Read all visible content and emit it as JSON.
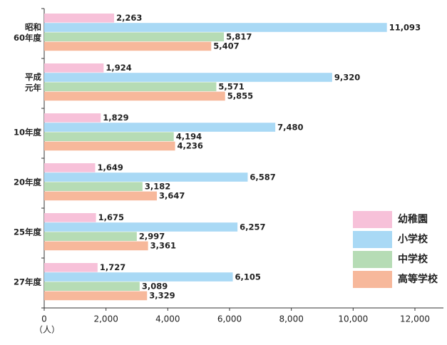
{
  "chart_data": {
    "type": "bar",
    "orientation": "horizontal",
    "categories": [
      [
        "昭和",
        "60年度"
      ],
      [
        "平成",
        "元年"
      ],
      [
        "10年度"
      ],
      [
        "20年度"
      ],
      [
        "25年度"
      ],
      [
        "27年度"
      ]
    ],
    "series": [
      {
        "name": "幼稚園",
        "color": "#f7c1d9",
        "values": [
          2263,
          1924,
          1829,
          1649,
          1675,
          1727
        ],
        "value_labels": [
          "2,263",
          "1,924",
          "1,829",
          "1,649",
          "1,675",
          "1,727"
        ]
      },
      {
        "name": "小学校",
        "color": "#a9d9f5",
        "values": [
          11093,
          9320,
          7480,
          6587,
          6257,
          6105
        ],
        "value_labels": [
          "11,093",
          "9,320",
          "7,480",
          "6,587",
          "6,257",
          "6,105"
        ]
      },
      {
        "name": "中学校",
        "color": "#b6dcb5",
        "values": [
          5817,
          5571,
          4194,
          3182,
          2997,
          3089
        ],
        "value_labels": [
          "5,817",
          "5,571",
          "4,194",
          "3,182",
          "2,997",
          "3,089"
        ]
      },
      {
        "name": "高等学校",
        "color": "#f7b89b",
        "values": [
          5407,
          5855,
          4236,
          3647,
          3361,
          3329
        ],
        "value_labels": [
          "5,407",
          "5,855",
          "4,236",
          "3,647",
          "3,361",
          "3,329"
        ]
      }
    ],
    "xlim": [
      0,
      12000
    ],
    "xticks": [
      0,
      {
        "value": 2000,
        "label": "2,000"
      },
      {
        "value": 4000,
        "label": "4,000"
      },
      {
        "value": 6000,
        "label": "6,000"
      },
      {
        "value": 8000,
        "label": "8,000"
      },
      {
        "value": 10000,
        "label": "10,000"
      },
      {
        "value": 12000,
        "label": "12,000"
      }
    ],
    "x_label": "（人）",
    "grid": false,
    "legend": "lower right"
  }
}
